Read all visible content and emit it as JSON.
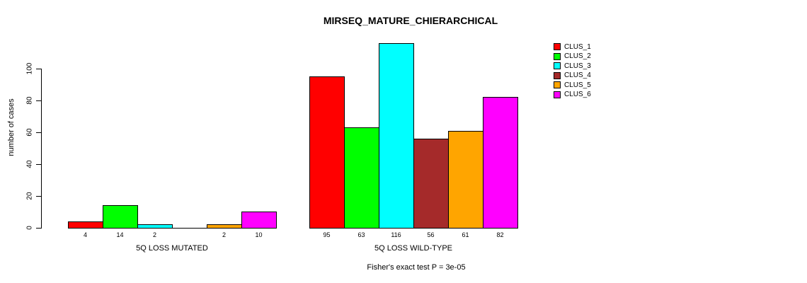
{
  "title": "MIRSEQ_MATURE_CHIERARCHICAL",
  "footer": "Fisher's exact test P = 3e-05",
  "chart_data": {
    "type": "bar",
    "title": "MIRSEQ_MATURE_CHIERARCHICAL",
    "ylabel": "number of cases",
    "xlabel": "",
    "categories": [
      "5Q LOSS MUTATED",
      "5Q LOSS WILD-TYPE"
    ],
    "series": [
      {
        "name": "CLUS_1",
        "color": "#FF0000",
        "values": [
          4,
          95
        ]
      },
      {
        "name": "CLUS_2",
        "color": "#00FF00",
        "values": [
          14,
          63
        ]
      },
      {
        "name": "CLUS_3",
        "color": "#00FFFF",
        "values": [
          2,
          116
        ]
      },
      {
        "name": "CLUS_4",
        "color": "#A52A2A",
        "values": [
          0,
          56
        ]
      },
      {
        "name": "CLUS_5",
        "color": "#FFA500",
        "values": [
          2,
          61
        ]
      },
      {
        "name": "CLUS_6",
        "color": "#FF00FF",
        "values": [
          10,
          82
        ]
      }
    ],
    "bar_labels": [
      [
        "4",
        "14",
        "2",
        "",
        "2",
        "10"
      ],
      [
        "95",
        "63",
        "116",
        "56",
        "61",
        "82"
      ]
    ],
    "yticks": [
      0,
      20,
      40,
      60,
      80,
      100
    ],
    "ylim": [
      0,
      116
    ],
    "grid": false,
    "legend_position": "right",
    "legend_entries": [
      "CLUS_1",
      "CLUS_2",
      "CLUS_3",
      "CLUS_4",
      "CLUS_5",
      "CLUS_6"
    ],
    "annotation": "Fisher's exact test P = 3e-05",
    "axis_color": "#000000",
    "background_color": "#ffffff"
  }
}
